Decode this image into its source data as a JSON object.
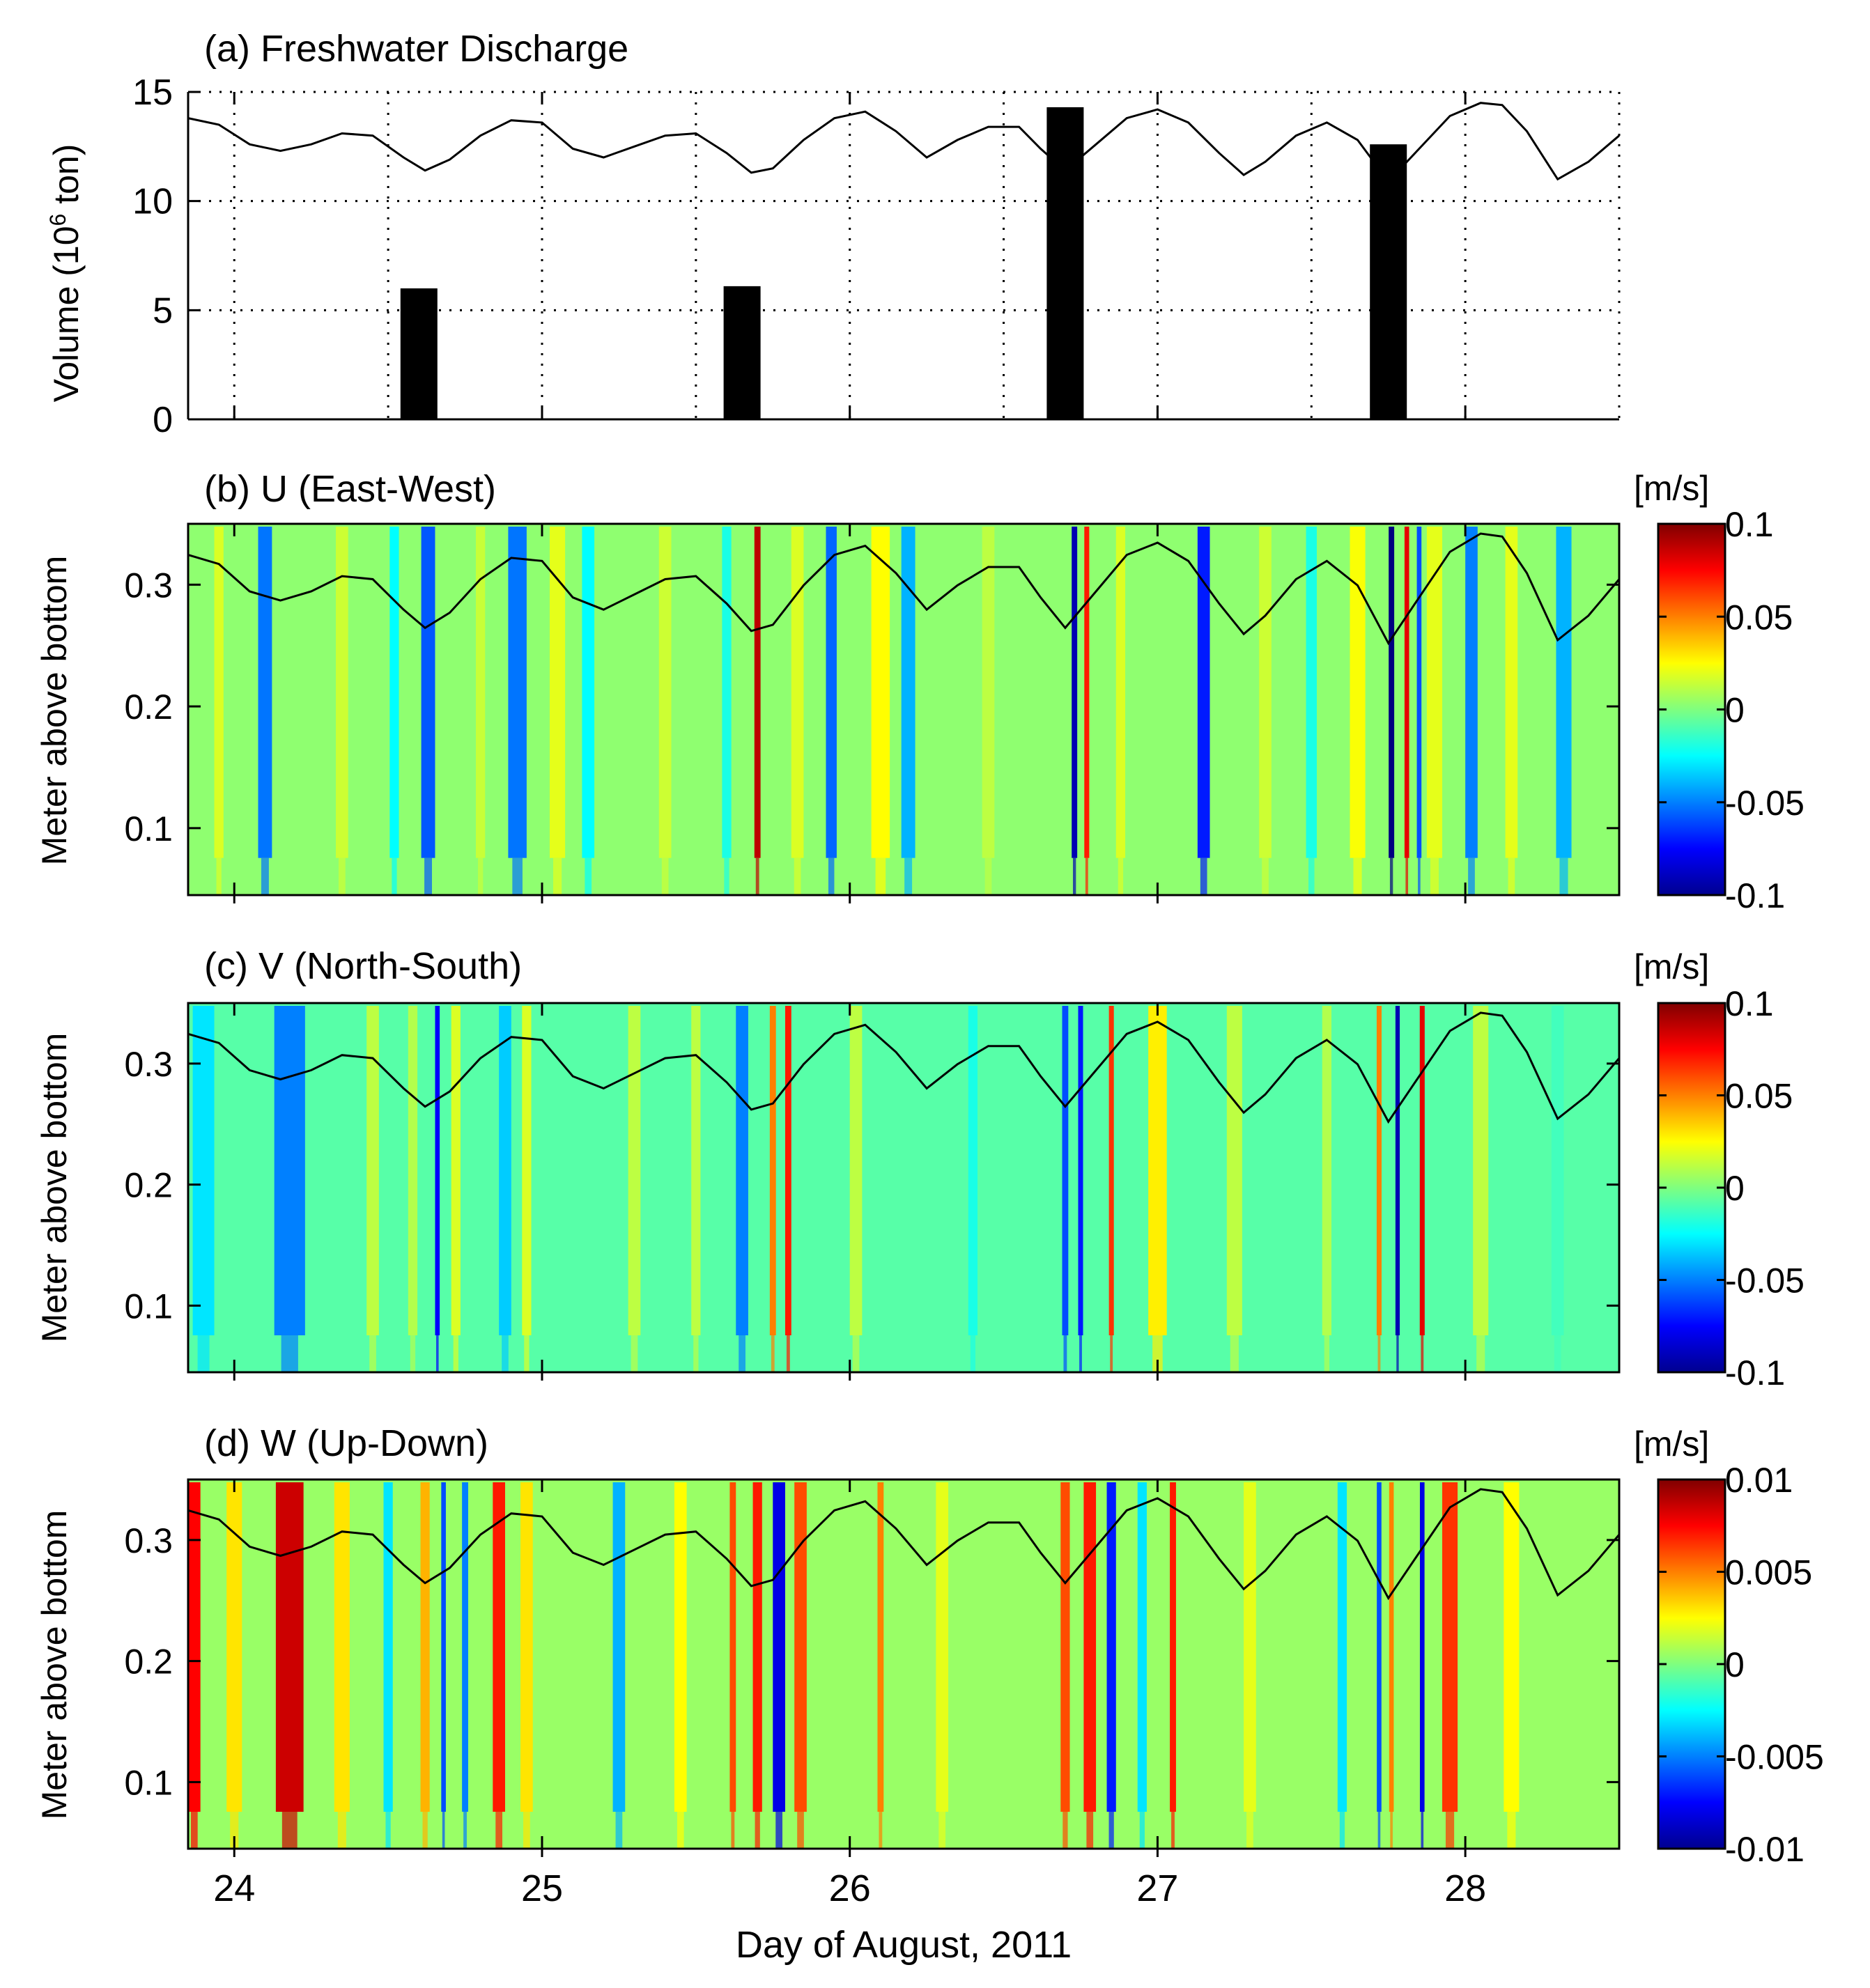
{
  "figure": {
    "xlabel": "Day of August, 2011",
    "x_ticks": [
      24,
      25,
      26,
      27,
      28
    ],
    "xlim": [
      23.85,
      28.5
    ]
  },
  "chart_data": [
    {
      "type": "bar",
      "panel": "a",
      "title": "(a) Freshwater Discharge",
      "ylabel": "Volume (10",
      "ylabel_sup": "6",
      "ylabel_end": " ton)",
      "ylim": [
        0,
        15
      ],
      "y_ticks": [
        0,
        5,
        10,
        15
      ],
      "bars": [
        {
          "x": 24.6,
          "value": 6.0
        },
        {
          "x": 25.65,
          "value": 6.1
        },
        {
          "x": 26.7,
          "value": 14.3
        },
        {
          "x": 27.75,
          "value": 12.6
        }
      ],
      "bar_width_days": 0.12,
      "line_series": {
        "name": "water level",
        "x": [
          23.85,
          23.95,
          24.05,
          24.15,
          24.25,
          24.35,
          24.45,
          24.55,
          24.62,
          24.7,
          24.8,
          24.9,
          25.0,
          25.1,
          25.2,
          25.3,
          25.4,
          25.5,
          25.6,
          25.68,
          25.75,
          25.85,
          25.95,
          26.05,
          26.15,
          26.25,
          26.35,
          26.45,
          26.55,
          26.62,
          26.7,
          26.8,
          26.9,
          27.0,
          27.1,
          27.2,
          27.28,
          27.35,
          27.45,
          27.55,
          27.65,
          27.75,
          27.85,
          27.95,
          28.05,
          28.12,
          28.2,
          28.3,
          28.4,
          28.5
        ],
        "y": [
          13.8,
          13.5,
          12.6,
          12.3,
          12.6,
          13.1,
          13.0,
          12.0,
          11.4,
          11.9,
          13.0,
          13.7,
          13.6,
          12.4,
          12.0,
          12.5,
          13.0,
          13.1,
          12.2,
          11.3,
          11.5,
          12.8,
          13.8,
          14.1,
          13.2,
          12.0,
          12.8,
          13.4,
          13.4,
          12.4,
          11.4,
          12.6,
          13.8,
          14.2,
          13.6,
          12.2,
          11.2,
          11.8,
          13.0,
          13.6,
          12.8,
          10.9,
          12.4,
          13.9,
          14.5,
          14.4,
          13.2,
          11.0,
          11.8,
          13.0
        ]
      }
    },
    {
      "type": "heatmap",
      "panel": "b",
      "title": "(b) U (East-West)",
      "ylabel": "Meter above bottom",
      "units": "[m/s]",
      "ylim": [
        0.045,
        0.35
      ],
      "y_ticks": [
        0.1,
        0.2,
        0.3
      ],
      "y_tick_labels": [
        "0.1",
        "0.2",
        "0.3"
      ],
      "clim": [
        -0.1,
        0.1
      ],
      "colorbar_ticks": [
        0.1,
        0.05,
        0,
        -0.05,
        -0.1
      ],
      "colorbar_tick_labels": [
        "0.1",
        "0.05",
        "0",
        "-0.05",
        "-0.1"
      ],
      "base": 0.003,
      "stripes": [
        {
          "x": 23.95,
          "width": 0.03,
          "value": 0.018
        },
        {
          "x": 24.1,
          "width": 0.045,
          "value": -0.052
        },
        {
          "x": 24.35,
          "width": 0.04,
          "value": 0.015
        },
        {
          "x": 24.52,
          "width": 0.03,
          "value": -0.025
        },
        {
          "x": 24.63,
          "width": 0.045,
          "value": -0.058
        },
        {
          "x": 24.8,
          "width": 0.03,
          "value": 0.014
        },
        {
          "x": 24.92,
          "width": 0.06,
          "value": -0.052
        },
        {
          "x": 25.05,
          "width": 0.05,
          "value": 0.02
        },
        {
          "x": 25.15,
          "width": 0.04,
          "value": -0.025
        },
        {
          "x": 25.4,
          "width": 0.04,
          "value": 0.015
        },
        {
          "x": 25.6,
          "width": 0.03,
          "value": -0.02
        },
        {
          "x": 25.7,
          "width": 0.02,
          "value": 0.088
        },
        {
          "x": 25.83,
          "width": 0.04,
          "value": 0.018
        },
        {
          "x": 25.94,
          "width": 0.035,
          "value": -0.055
        },
        {
          "x": 26.1,
          "width": 0.06,
          "value": 0.025
        },
        {
          "x": 26.19,
          "width": 0.045,
          "value": -0.04
        },
        {
          "x": 26.45,
          "width": 0.04,
          "value": 0.012
        },
        {
          "x": 26.73,
          "width": 0.018,
          "value": -0.09
        },
        {
          "x": 26.77,
          "width": 0.016,
          "value": 0.07
        },
        {
          "x": 26.88,
          "width": 0.03,
          "value": 0.018
        },
        {
          "x": 27.15,
          "width": 0.04,
          "value": -0.07
        },
        {
          "x": 27.35,
          "width": 0.04,
          "value": 0.015
        },
        {
          "x": 27.5,
          "width": 0.035,
          "value": -0.02
        },
        {
          "x": 27.65,
          "width": 0.05,
          "value": 0.024
        },
        {
          "x": 27.76,
          "width": 0.018,
          "value": -0.1
        },
        {
          "x": 27.81,
          "width": 0.015,
          "value": 0.08
        },
        {
          "x": 27.85,
          "width": 0.015,
          "value": -0.06
        },
        {
          "x": 27.9,
          "width": 0.05,
          "value": 0.02
        },
        {
          "x": 28.02,
          "width": 0.04,
          "value": -0.05
        },
        {
          "x": 28.15,
          "width": 0.04,
          "value": 0.02
        },
        {
          "x": 28.32,
          "width": 0.05,
          "value": -0.04
        }
      ],
      "overlay": "water level (scaled)"
    },
    {
      "type": "heatmap",
      "panel": "c",
      "title": "(c) V (North-South)",
      "ylabel": "Meter above bottom",
      "units": "[m/s]",
      "ylim": [
        0.045,
        0.35
      ],
      "y_ticks": [
        0.1,
        0.2,
        0.3
      ],
      "y_tick_labels": [
        "0.1",
        "0.2",
        "0.3"
      ],
      "clim": [
        -0.1,
        0.1
      ],
      "colorbar_ticks": [
        0.1,
        0.05,
        0,
        -0.05,
        -0.1
      ],
      "colorbar_tick_labels": [
        "0.1",
        "0.05",
        "0",
        "-0.05",
        "-0.1"
      ],
      "base": -0.008,
      "stripes": [
        {
          "x": 23.9,
          "width": 0.07,
          "value": -0.03
        },
        {
          "x": 24.18,
          "width": 0.1,
          "value": -0.05
        },
        {
          "x": 24.45,
          "width": 0.04,
          "value": 0.012
        },
        {
          "x": 24.58,
          "width": 0.03,
          "value": 0.01
        },
        {
          "x": 24.66,
          "width": 0.015,
          "value": -0.075
        },
        {
          "x": 24.72,
          "width": 0.03,
          "value": 0.018
        },
        {
          "x": 24.88,
          "width": 0.04,
          "value": -0.035
        },
        {
          "x": 24.95,
          "width": 0.03,
          "value": 0.018
        },
        {
          "x": 25.3,
          "width": 0.04,
          "value": 0.012
        },
        {
          "x": 25.5,
          "width": 0.03,
          "value": 0.012
        },
        {
          "x": 25.65,
          "width": 0.04,
          "value": -0.05
        },
        {
          "x": 25.75,
          "width": 0.02,
          "value": 0.05
        },
        {
          "x": 25.8,
          "width": 0.02,
          "value": 0.07
        },
        {
          "x": 26.02,
          "width": 0.04,
          "value": 0.012
        },
        {
          "x": 26.4,
          "width": 0.03,
          "value": -0.02
        },
        {
          "x": 26.7,
          "width": 0.02,
          "value": -0.06
        },
        {
          "x": 26.75,
          "width": 0.016,
          "value": -0.07
        },
        {
          "x": 26.85,
          "width": 0.016,
          "value": 0.065
        },
        {
          "x": 27.0,
          "width": 0.06,
          "value": 0.028
        },
        {
          "x": 27.25,
          "width": 0.05,
          "value": 0.012
        },
        {
          "x": 27.55,
          "width": 0.03,
          "value": 0.01
        },
        {
          "x": 27.72,
          "width": 0.016,
          "value": 0.05
        },
        {
          "x": 27.78,
          "width": 0.014,
          "value": -0.09
        },
        {
          "x": 27.86,
          "width": 0.016,
          "value": 0.08
        },
        {
          "x": 28.05,
          "width": 0.05,
          "value": 0.012
        },
        {
          "x": 28.3,
          "width": 0.04,
          "value": -0.012
        }
      ],
      "overlay": "water level (scaled)"
    },
    {
      "type": "heatmap",
      "panel": "d",
      "title": "(d) W (Up-Down)",
      "ylabel": "Meter above bottom",
      "units": "[m/s]",
      "ylim": [
        0.045,
        0.35
      ],
      "y_ticks": [
        0.1,
        0.2,
        0.3
      ],
      "y_tick_labels": [
        "0.1",
        "0.2",
        "0.3"
      ],
      "clim": [
        -0.01,
        0.01
      ],
      "colorbar_ticks": [
        0.01,
        0.005,
        0,
        -0.005,
        -0.01
      ],
      "colorbar_tick_labels": [
        "0.01",
        "0.005",
        "0",
        "-0.005",
        "-0.01"
      ],
      "base": 0.0005,
      "stripes": [
        {
          "x": 23.87,
          "width": 0.04,
          "value": 0.0075
        },
        {
          "x": 24.0,
          "width": 0.05,
          "value": 0.003
        },
        {
          "x": 24.18,
          "width": 0.09,
          "value": 0.0085
        },
        {
          "x": 24.35,
          "width": 0.05,
          "value": 0.003
        },
        {
          "x": 24.5,
          "width": 0.03,
          "value": -0.003
        },
        {
          "x": 24.62,
          "width": 0.03,
          "value": 0.004
        },
        {
          "x": 24.68,
          "width": 0.015,
          "value": -0.006
        },
        {
          "x": 24.75,
          "width": 0.02,
          "value": -0.005
        },
        {
          "x": 24.86,
          "width": 0.04,
          "value": 0.007
        },
        {
          "x": 24.95,
          "width": 0.04,
          "value": 0.003
        },
        {
          "x": 25.25,
          "width": 0.04,
          "value": -0.004
        },
        {
          "x": 25.45,
          "width": 0.04,
          "value": 0.0025
        },
        {
          "x": 25.62,
          "width": 0.02,
          "value": 0.006
        },
        {
          "x": 25.7,
          "width": 0.03,
          "value": 0.007
        },
        {
          "x": 25.77,
          "width": 0.04,
          "value": -0.008
        },
        {
          "x": 25.84,
          "width": 0.04,
          "value": 0.006
        },
        {
          "x": 26.1,
          "width": 0.02,
          "value": 0.005
        },
        {
          "x": 26.3,
          "width": 0.04,
          "value": 0.002
        },
        {
          "x": 26.7,
          "width": 0.03,
          "value": 0.006
        },
        {
          "x": 26.78,
          "width": 0.04,
          "value": 0.007
        },
        {
          "x": 26.85,
          "width": 0.03,
          "value": -0.007
        },
        {
          "x": 26.95,
          "width": 0.03,
          "value": -0.003
        },
        {
          "x": 27.05,
          "width": 0.02,
          "value": 0.007
        },
        {
          "x": 27.3,
          "width": 0.04,
          "value": 0.002
        },
        {
          "x": 27.6,
          "width": 0.03,
          "value": -0.003
        },
        {
          "x": 27.72,
          "width": 0.015,
          "value": -0.006
        },
        {
          "x": 27.76,
          "width": 0.015,
          "value": 0.005
        },
        {
          "x": 27.86,
          "width": 0.015,
          "value": -0.008
        },
        {
          "x": 27.95,
          "width": 0.05,
          "value": 0.0065
        },
        {
          "x": 28.15,
          "width": 0.05,
          "value": 0.0025
        }
      ],
      "overlay": "water level (scaled)"
    }
  ]
}
